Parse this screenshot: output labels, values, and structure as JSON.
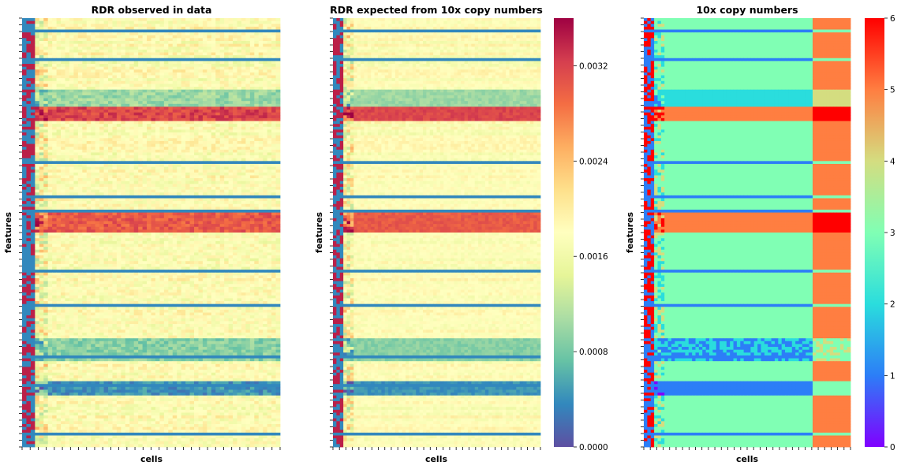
{
  "chart_data": [
    {
      "type": "heatmap",
      "title": "RDR observed in data",
      "xlabel": "cells",
      "ylabel": "features",
      "colormap": "Spectral_r",
      "vmin": 0.0,
      "vmax": 0.0036,
      "colorbar": false
    },
    {
      "type": "heatmap",
      "title": "RDR expected from 10x copy numbers",
      "xlabel": "cells",
      "ylabel": "features",
      "colormap": "Spectral_r",
      "vmin": 0.0,
      "vmax": 0.0036,
      "colorbar": true,
      "colorbar_ticks": [
        "0.0000",
        "0.0008",
        "0.0016",
        "0.0024",
        "0.0032"
      ]
    },
    {
      "type": "heatmap",
      "title": "10x copy numbers",
      "xlabel": "cells",
      "ylabel": "features",
      "colormap": "rainbow",
      "vmin": 0,
      "vmax": 6,
      "colorbar": true,
      "colorbar_ticks": [
        "0",
        "1",
        "2",
        "3",
        "4",
        "5",
        "6"
      ]
    }
  ]
}
